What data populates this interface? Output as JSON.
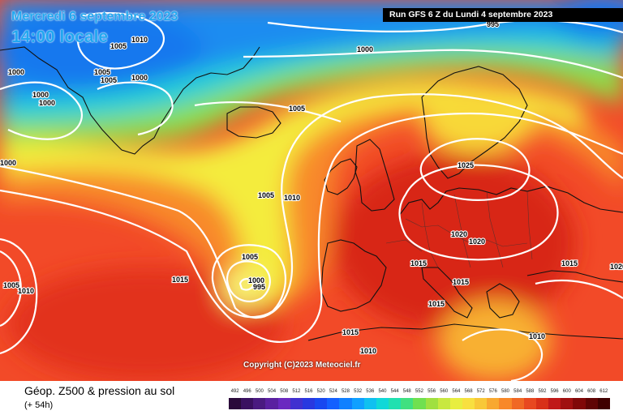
{
  "title": {
    "date": "Mercredi 6 septembre 2023",
    "local_time": "14:00 locale"
  },
  "run_info": "Run GFS 6 Z du Lundi 4 septembre 2023",
  "copyright": "Copyright (C)2023 Meteociel.fr",
  "footer": {
    "caption": "Géop. Z500 & pression au sol",
    "subcaption": "(+ 54h)"
  },
  "colors": {
    "low_geopotential": "#2a8ef0",
    "mid_geopotential": "#f6ee3a",
    "high_geopotential": "#f0402a",
    "isobar": "#ffffff",
    "coastline": "#111111"
  },
  "scale": {
    "labels": [
      "492",
      "496",
      "500",
      "504",
      "508",
      "512",
      "516",
      "520",
      "524",
      "528",
      "532",
      "536",
      "540",
      "544",
      "548",
      "552",
      "556",
      "560",
      "564",
      "568",
      "572",
      "576",
      "580",
      "584",
      "588",
      "592",
      "596",
      "600",
      "604",
      "608",
      "612"
    ],
    "colors": [
      "#2a0a3a",
      "#3a1060",
      "#4a1a80",
      "#5a20a0",
      "#6a28c0",
      "#4030d0",
      "#2838e0",
      "#1848f0",
      "#1460ff",
      "#1080ff",
      "#10a0ff",
      "#10c0f0",
      "#10d8d8",
      "#20e0b0",
      "#40e080",
      "#70e050",
      "#a0e040",
      "#c8e840",
      "#e8ee40",
      "#f8e040",
      "#f8c838",
      "#f8a830",
      "#f88828",
      "#f06824",
      "#e84820",
      "#d83018",
      "#c01818",
      "#a01010",
      "#800808",
      "#600404",
      "#400000"
    ]
  },
  "pressure_labels": [
    "1010",
    "1005",
    "1005",
    "1005",
    "1000",
    "1000",
    "1000",
    "1000",
    "1000",
    "1000",
    "995",
    "1005",
    "1005",
    "1010",
    "1025",
    "1020",
    "1020",
    "1015",
    "1015",
    "1015",
    "1015",
    "1015",
    "1010",
    "1010",
    "1015",
    "1020",
    "1005",
    "1010",
    "1000",
    "1005",
    "995"
  ]
}
